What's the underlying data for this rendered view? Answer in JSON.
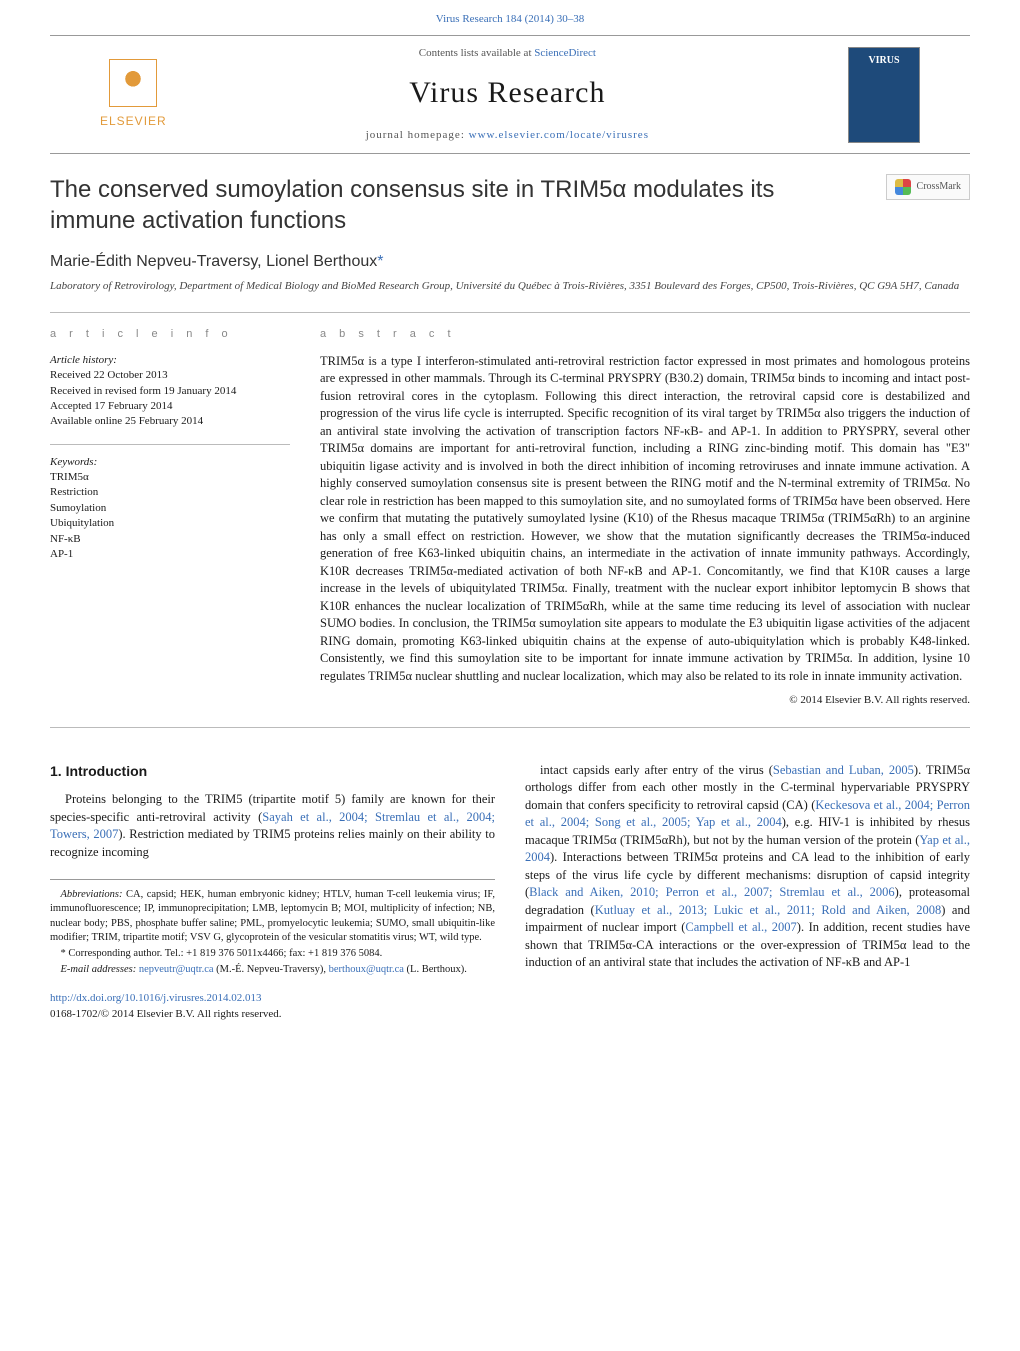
{
  "colors": {
    "link": "#3a6fb7",
    "accent_orange": "#e29a3a",
    "text": "#1a1a1a",
    "rule": "#bbbbbb",
    "muted": "#888888"
  },
  "typography": {
    "body_font": "Georgia, 'Times New Roman', serif",
    "sans_font": "Arial, Helvetica, sans-serif",
    "title_fontsize_pt": 19,
    "journal_fontsize_pt": 23,
    "body_fontsize_pt": 10,
    "footnote_fontsize_pt": 8
  },
  "header": {
    "citation": "Virus Research 184 (2014) 30–38",
    "contents_prefix": "Contents lists available at ",
    "contents_link": "ScienceDirect",
    "journal": "Virus Research",
    "homepage_prefix": "journal homepage: ",
    "homepage_link": "www.elsevier.com/locate/virusres",
    "publisher": "ELSEVIER",
    "cover_label": "VIRUS",
    "crossmark": "CrossMark"
  },
  "article": {
    "title": "The conserved sumoylation consensus site in TRIM5α modulates its immune activation functions",
    "authors_html": "Marie-Édith Nepveu-Traversy, Lionel Berthoux",
    "corr_marker": "*",
    "affiliation": "Laboratory of Retrovirology, Department of Medical Biology and BioMed Research Group, Université du Québec à Trois-Rivières, 3351 Boulevard des Forges, CP500, Trois-Rivières, QC G9A 5H7, Canada"
  },
  "info": {
    "section_label": "a r t i c l e   i n f o",
    "history_label": "Article history:",
    "received": "Received 22 October 2013",
    "revised": "Received in revised form 19 January 2014",
    "accepted": "Accepted 17 February 2014",
    "online": "Available online 25 February 2014",
    "keywords_label": "Keywords:",
    "keywords": [
      "TRIM5α",
      "Restriction",
      "Sumoylation",
      "Ubiquitylation",
      "NF-κB",
      "AP-1"
    ]
  },
  "abstract": {
    "section_label": "a b s t r a c t",
    "text": "TRIM5α is a type I interferon-stimulated anti-retroviral restriction factor expressed in most primates and homologous proteins are expressed in other mammals. Through its C-terminal PRYSPRY (B30.2) domain, TRIM5α binds to incoming and intact post-fusion retroviral cores in the cytoplasm. Following this direct interaction, the retroviral capsid core is destabilized and progression of the virus life cycle is interrupted. Specific recognition of its viral target by TRIM5α also triggers the induction of an antiviral state involving the activation of transcription factors NF-κB- and AP-1. In addition to PRYSPRY, several other TRIM5α domains are important for anti-retroviral function, including a RING zinc-binding motif. This domain has \"E3\" ubiquitin ligase activity and is involved in both the direct inhibition of incoming retroviruses and innate immune activation. A highly conserved sumoylation consensus site is present between the RING motif and the N-terminal extremity of TRIM5α. No clear role in restriction has been mapped to this sumoylation site, and no sumoylated forms of TRIM5α have been observed. Here we confirm that mutating the putatively sumoylated lysine (K10) of the Rhesus macaque TRIM5α (TRIM5αRh) to an arginine has only a small effect on restriction. However, we show that the mutation significantly decreases the TRIM5α-induced generation of free K63-linked ubiquitin chains, an intermediate in the activation of innate immunity pathways. Accordingly, K10R decreases TRIM5α-mediated activation of both NF-κB and AP-1. Concomitantly, we find that K10R causes a large increase in the levels of ubiquitylated TRIM5α. Finally, treatment with the nuclear export inhibitor leptomycin B shows that K10R enhances the nuclear localization of TRIM5αRh, while at the same time reducing its level of association with nuclear SUMO bodies. In conclusion, the TRIM5α sumoylation site appears to modulate the E3 ubiquitin ligase activities of the adjacent RING domain, promoting K63-linked ubiquitin chains at the expense of auto-ubiquitylation which is probably K48-linked. Consistently, we find this sumoylation site to be important for innate immune activation by TRIM5α. In addition, lysine 10 regulates TRIM5α nuclear shuttling and nuclear localization, which may also be related to its role in innate immunity activation.",
    "copyright": "© 2014 Elsevier B.V. All rights reserved."
  },
  "intro": {
    "heading": "1.  Introduction",
    "left_para": "Proteins belonging to the TRIM5 (tripartite motif 5) family are known for their species-specific anti-retroviral activity (",
    "left_refs": "Sayah et al., 2004; Stremlau et al., 2004; Towers, 2007",
    "left_tail": "). Restriction mediated by TRIM5 proteins relies mainly on their ability to recognize incoming",
    "right_pre": "intact capsids early after entry of the virus (",
    "right_ref1": "Sebastian and Luban, 2005",
    "right_mid1": "). TRIM5α orthologs differ from each other mostly in the C-terminal hypervariable PRYSPRY domain that confers specificity to retroviral capsid (CA) (",
    "right_ref2": "Keckesova et al., 2004; Perron et al., 2004; Song et al., 2005; Yap et al., 2004",
    "right_mid2": "), e.g. HIV-1 is inhibited by rhesus macaque TRIM5α (TRIM5αRh), but not by the human version of the protein (",
    "right_ref3": "Yap et al., 2004",
    "right_mid3": "). Interactions between TRIM5α proteins and CA lead to the inhibition of early steps of the virus life cycle by different mechanisms: disruption of capsid integrity (",
    "right_ref4": "Black and Aiken, 2010; Perron et al., 2007; Stremlau et al., 2006",
    "right_mid4": "), proteasomal degradation (",
    "right_ref5": "Kutluay et al., 2013; Lukic et al., 2011; Rold and Aiken, 2008",
    "right_mid5": ") and impairment of nuclear import (",
    "right_ref6": "Campbell et al., 2007",
    "right_tail": "). In addition, recent studies have shown that TRIM5α-CA interactions or the over-expression of TRIM5α lead to the induction of an antiviral state that includes the activation of NF-κB and AP-1"
  },
  "footnotes": {
    "abbrev_label": "Abbreviations:",
    "abbrev": "  CA, capsid; HEK, human embryonic kidney; HTLV, human T-cell leukemia virus; IF, immunofluorescence; IP, immunoprecipitation; LMB, leptomycin B; MOI, multiplicity of infection; NB, nuclear body; PBS, phosphate buffer saline; PML, promyelocytic leukemia; SUMO, small ubiquitin-like modifier; TRIM, tripartite motif; VSV G, glycoprotein of the vesicular stomatitis virus; WT, wild type.",
    "corr": "* Corresponding author. Tel.: +1 819 376 5011x4466; fax: +1 819 376 5084.",
    "emails_label": "E-mail addresses: ",
    "email1": "nepveutr@uqtr.ca",
    "email1_who": " (M.-É. Nepveu-Traversy), ",
    "email2": "berthoux@uqtr.ca",
    "email2_who": " (L. Berthoux)."
  },
  "footer": {
    "doi": "http://dx.doi.org/10.1016/j.virusres.2014.02.013",
    "issn_line": "0168-1702/© 2014 Elsevier B.V. All rights reserved."
  }
}
